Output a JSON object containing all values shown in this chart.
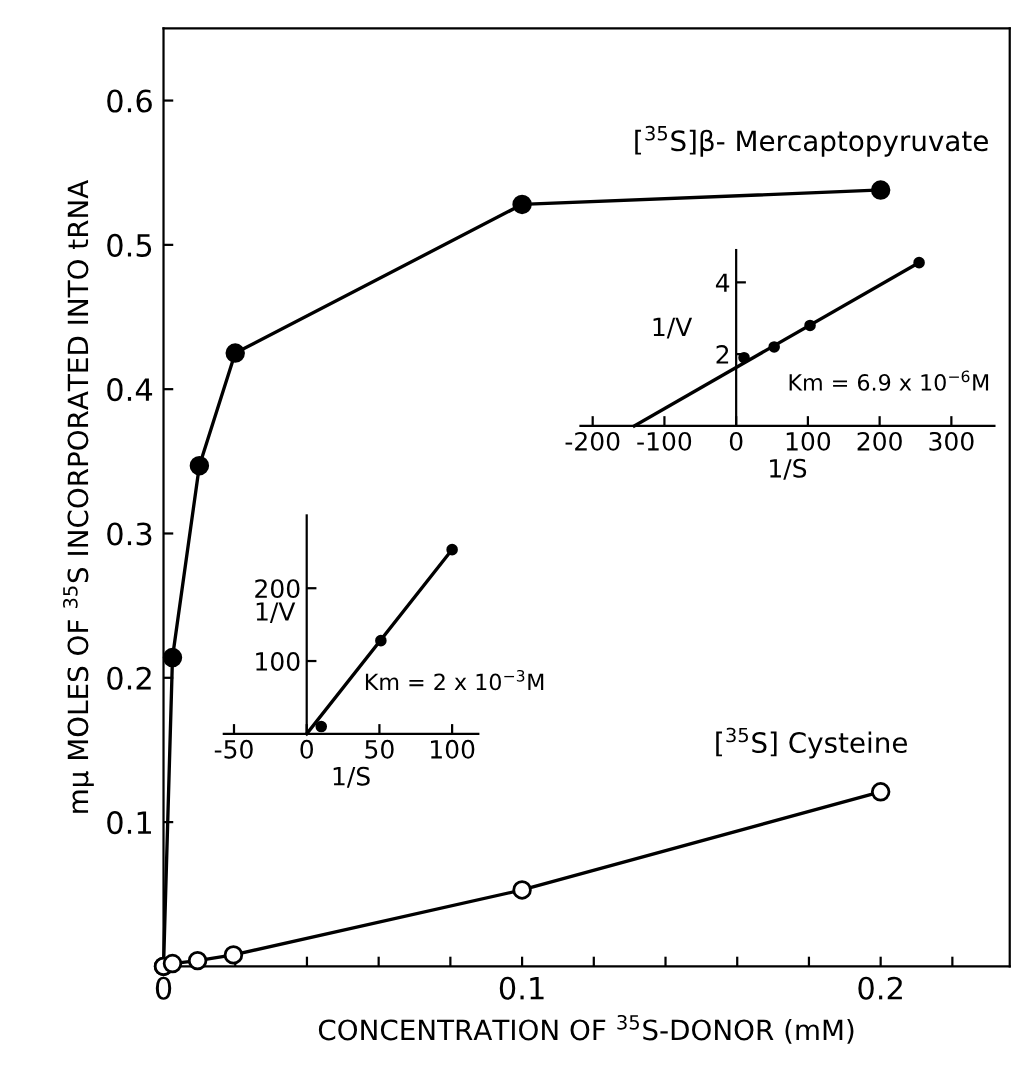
{
  "chart_data": [
    {
      "type": "line",
      "xlabel": "CONCENTRATION OF $^{35}$S-DONOR (mM)",
      "ylabel": "mμ MOLES OF $^{35}$S INCORPORATED INTO tRNA",
      "xlim": [
        0,
        0.236
      ],
      "ylim": [
        0,
        0.65
      ],
      "xticks": [
        0,
        0.1,
        0.2,
        {
          "value": 0.02,
          "label": null
        },
        {
          "value": 0.04,
          "label": null
        },
        {
          "value": 0.06,
          "label": null
        },
        {
          "value": 0.08,
          "label": null
        },
        {
          "value": 0.12,
          "label": null
        },
        {
          "value": 0.14,
          "label": null
        },
        {
          "value": 0.16,
          "label": null
        },
        {
          "value": 0.18,
          "label": null
        },
        {
          "value": 0.22,
          "label": null
        }
      ],
      "yticks": [
        0.1,
        0.2,
        0.3,
        0.4,
        0.5,
        0.6
      ],
      "marker": "circle",
      "grid": false,
      "series": [
        {
          "name": "[$^{35}$S]β- Mercaptopyruvate",
          "color": "#000000",
          "x": [
            0,
            0.0025,
            0.01,
            0.02,
            0.1,
            0.2
          ],
          "values": [
            0,
            0.214,
            0.347,
            0.425,
            0.528,
            0.538
          ]
        },
        {
          "name": "[$^{35}$S] Cysteine",
          "color": "#000000",
          "x": [
            0,
            0.0025,
            0.0095,
            0.0195,
            0.1,
            0.2
          ],
          "values": [
            0,
            0.002,
            0.004,
            0.008,
            0.053,
            0.121
          ]
        }
      ]
    },
    {
      "type": "scatter",
      "xlabel": "1/S",
      "ylabel": "1/V",
      "xlim": [
        -217,
        360
      ],
      "ylim": [
        0,
        4.9
      ],
      "xticks": [
        -200,
        -100,
        0,
        100,
        200,
        300
      ],
      "yticks": [
        2,
        4
      ],
      "annotations": [
        "Km = 6.9 x 10$^{−6}$M"
      ],
      "series": [
        {
          "color": "#000000",
          "x": [
            11,
            53,
            103,
            255
          ],
          "values": [
            1.9,
            2.2,
            2.8,
            4.55
          ]
        },
        {
          "type": "line",
          "color": "#000000",
          "x": [
            -142,
            255
          ],
          "values": [
            0,
            4.55
          ]
        }
      ]
    },
    {
      "type": "scatter",
      "xlabel": "1/S",
      "ylabel": "1/V",
      "xlim": [
        -57,
        118
      ],
      "ylim": [
        0,
        300
      ],
      "xticks": [
        -50,
        0,
        50,
        100
      ],
      "yticks": [
        100,
        200
      ],
      "annotations": [
        "Km = 2 x 10$^{−3}$M"
      ],
      "series": [
        {
          "color": "#000000",
          "x": [
            10,
            51,
            100
          ],
          "values": [
            10,
            128,
            253
          ]
        },
        {
          "type": "line",
          "color": "#000000",
          "x": [
            0,
            100
          ],
          "values": [
            0,
            253
          ]
        }
      ]
    }
  ]
}
